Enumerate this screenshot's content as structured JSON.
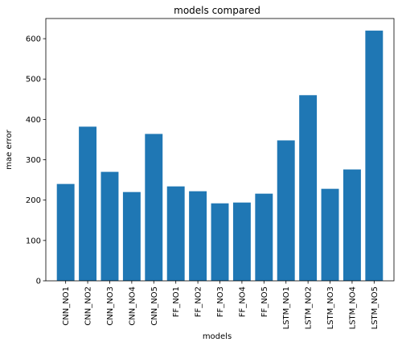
{
  "chart_data": {
    "type": "bar",
    "title": "models compared",
    "xlabel": "models",
    "ylabel": "mae error",
    "categories": [
      "CNN_NO1",
      "CNN_NO2",
      "CNN_NO3",
      "CNN_NO4",
      "CNN_NO5",
      "FF_NO1",
      "FF_NO2",
      "FF_NO3",
      "FF_NO4",
      "FF_NO5",
      "LSTM_NO1",
      "LSTM_NO2",
      "LSTM_NO3",
      "LSTM_NO4",
      "LSTM_NO5"
    ],
    "values": [
      240,
      382,
      270,
      220,
      364,
      234,
      222,
      192,
      194,
      216,
      348,
      460,
      228,
      276,
      620
    ],
    "ylim": [
      0,
      650
    ],
    "yticks": [
      0,
      100,
      200,
      300,
      400,
      500,
      600
    ],
    "bar_color": "#1f77b4",
    "grid": false,
    "legend": "none"
  }
}
